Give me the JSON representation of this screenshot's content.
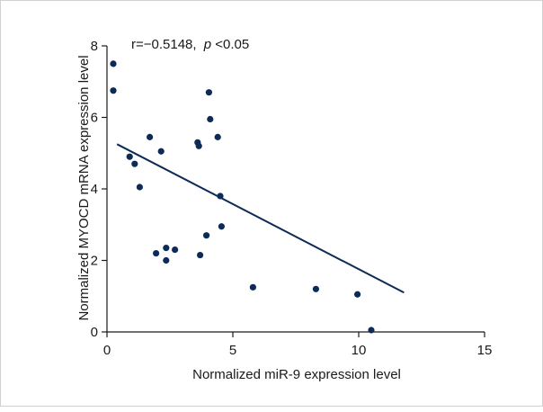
{
  "chart_data": {
    "type": "scatter",
    "xlabel": "Normalized miR-9 expression level",
    "ylabel": "Normalized MYOCD mRNA expression level",
    "xlim": [
      0,
      15
    ],
    "ylim": [
      0,
      8
    ],
    "xticks": [
      0,
      5,
      10,
      15
    ],
    "yticks": [
      0,
      2,
      4,
      6,
      8
    ],
    "annotation": {
      "r_text": "r=−0.5148,",
      "p_text": "p",
      "p_value_text": "<0.05"
    },
    "points": [
      {
        "x": 0.25,
        "y": 7.5
      },
      {
        "x": 0.25,
        "y": 6.75
      },
      {
        "x": 0.9,
        "y": 4.9
      },
      {
        "x": 1.1,
        "y": 4.7
      },
      {
        "x": 1.3,
        "y": 4.05
      },
      {
        "x": 1.7,
        "y": 5.45
      },
      {
        "x": 1.95,
        "y": 2.2
      },
      {
        "x": 2.15,
        "y": 5.05
      },
      {
        "x": 2.35,
        "y": 2.35
      },
      {
        "x": 2.35,
        "y": 2.0
      },
      {
        "x": 2.7,
        "y": 2.3
      },
      {
        "x": 3.6,
        "y": 5.3
      },
      {
        "x": 3.65,
        "y": 5.2
      },
      {
        "x": 3.7,
        "y": 2.15
      },
      {
        "x": 3.95,
        "y": 2.7
      },
      {
        "x": 4.05,
        "y": 6.7
      },
      {
        "x": 4.1,
        "y": 5.95
      },
      {
        "x": 4.4,
        "y": 5.45
      },
      {
        "x": 4.5,
        "y": 3.8
      },
      {
        "x": 4.55,
        "y": 2.95
      },
      {
        "x": 5.8,
        "y": 1.25
      },
      {
        "x": 8.3,
        "y": 1.2
      },
      {
        "x": 9.95,
        "y": 1.05
      },
      {
        "x": 10.5,
        "y": 0.05
      }
    ],
    "regression_line": {
      "x": [
        0.4,
        11.8
      ],
      "y": [
        5.25,
        1.1
      ]
    },
    "grid": false,
    "colors": {
      "points": "#0d2b57",
      "line": "#0d2b57",
      "axis": "#1a1a1a"
    }
  }
}
